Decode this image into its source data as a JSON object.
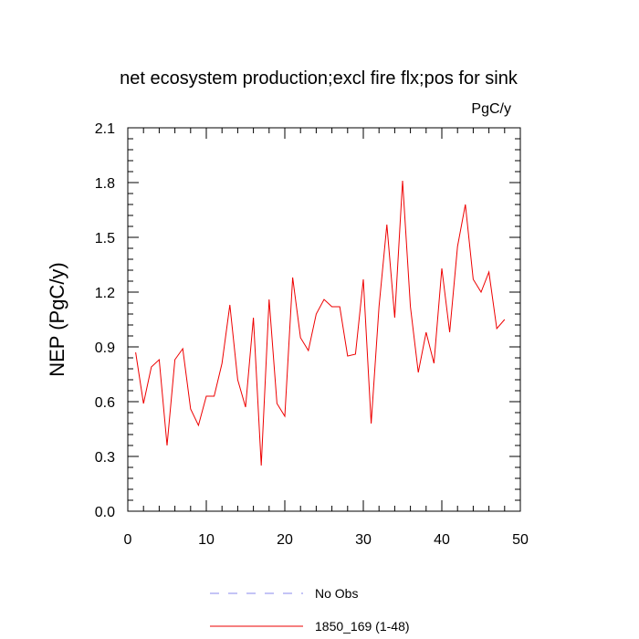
{
  "chart_data": {
    "type": "line",
    "title": "net ecosystem production;excl fire flx;pos for sink",
    "units_label": "PgC/y",
    "ylabel": "NEP  (PgC/y)",
    "xlabel": "",
    "xlim": [
      0,
      50
    ],
    "ylim": [
      0.0,
      2.1
    ],
    "x_ticks": [
      0,
      10,
      20,
      30,
      40,
      50
    ],
    "x_tick_labels": [
      "0",
      "10",
      "20",
      "30",
      "40",
      "50"
    ],
    "y_ticks": [
      0.0,
      0.3,
      0.6,
      0.9,
      1.2,
      1.5,
      1.8,
      2.1
    ],
    "y_tick_labels": [
      "0.0",
      "0.3",
      "0.6",
      "0.9",
      "1.2",
      "1.5",
      "1.8",
      "2.1"
    ],
    "grid": false,
    "legend_position": "bottom-center",
    "series": [
      {
        "name": "No Obs",
        "color": "#8888ee",
        "dash": "dashed",
        "x": [],
        "values": []
      },
      {
        "name": "1850_169 (1-48)",
        "color": "#ee0000",
        "dash": "solid",
        "x": [
          1,
          2,
          3,
          4,
          5,
          6,
          7,
          8,
          9,
          10,
          11,
          12,
          13,
          14,
          15,
          16,
          17,
          18,
          19,
          20,
          21,
          22,
          23,
          24,
          25,
          26,
          27,
          28,
          29,
          30,
          31,
          32,
          33,
          34,
          35,
          36,
          37,
          38,
          39,
          40,
          41,
          42,
          43,
          44,
          45,
          46,
          47,
          48
        ],
        "values": [
          0.87,
          0.59,
          0.79,
          0.83,
          0.36,
          0.83,
          0.89,
          0.56,
          0.47,
          0.63,
          0.63,
          0.81,
          1.13,
          0.72,
          0.57,
          1.06,
          0.25,
          1.16,
          0.59,
          0.52,
          1.28,
          0.95,
          0.88,
          1.08,
          1.16,
          1.12,
          1.12,
          0.85,
          0.86,
          1.27,
          0.48,
          1.12,
          1.57,
          1.06,
          1.81,
          1.12,
          0.76,
          0.98,
          0.81,
          1.33,
          0.98,
          1.45,
          1.68,
          1.27,
          1.2,
          1.31,
          1.0,
          1.05
        ]
      }
    ]
  }
}
